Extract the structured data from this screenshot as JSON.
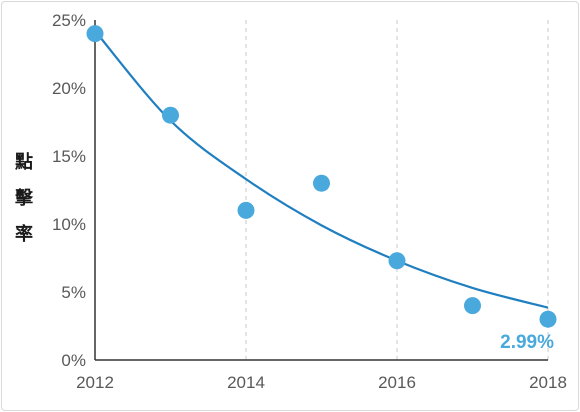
{
  "chart_data": {
    "type": "scatter",
    "title": "",
    "xlabel": "",
    "ylabel": "點擊率",
    "x": [
      2012,
      2013,
      2014,
      2015,
      2016,
      2017,
      2018
    ],
    "y": [
      24,
      18,
      11,
      13,
      7.3,
      4,
      3
    ],
    "xlim": [
      2012,
      2018
    ],
    "ylim": [
      0,
      25
    ],
    "x_ticks": [
      "2012",
      "2014",
      "2016",
      "2018"
    ],
    "y_ticks": [
      "0%",
      "5%",
      "10%",
      "15%",
      "20%",
      "25%"
    ],
    "trendline": {
      "type": "exponential",
      "x": [
        2012,
        2013,
        2014,
        2015,
        2016,
        2017,
        2018
      ],
      "y": [
        24.2,
        17.6,
        13.3,
        9.9,
        7.3,
        5.3,
        3.85
      ]
    },
    "grid": {
      "vertical": true,
      "style": "dashed"
    },
    "annotation": "2.99%",
    "colors": {
      "points": "#4aa9dc",
      "trend": "#1f7fc0",
      "annotation": "#4aa9dc",
      "grid": "#c8c8c8",
      "axis": "#333333"
    }
  }
}
